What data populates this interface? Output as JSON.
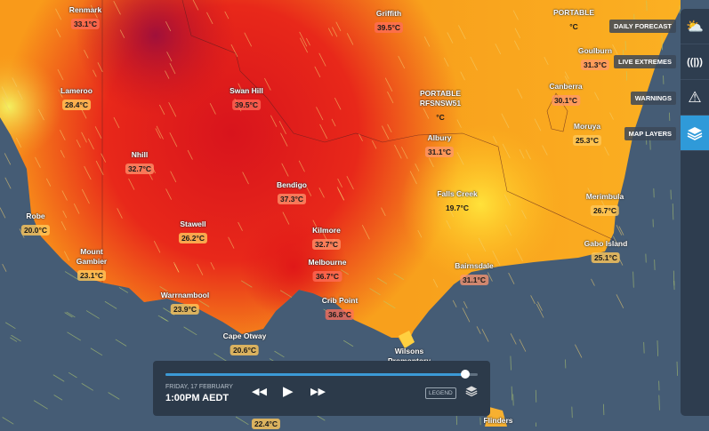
{
  "places": [
    {
      "name": "Renmark",
      "temp": "33.1°C"
    },
    {
      "name": "Griffith",
      "temp": "39.5°C"
    },
    {
      "name": "PORTABLE",
      "temp": "°C"
    },
    {
      "name": "Goulburn",
      "temp": "31.3°C"
    },
    {
      "name": "Lameroo",
      "temp": "28.4°C"
    },
    {
      "name": "Swan Hill",
      "temp": "39.5°C"
    },
    {
      "name": "PORTABLE RFSNSW51",
      "temp": "°C"
    },
    {
      "name": "Canberra",
      "temp": "30.1°C"
    },
    {
      "name": "Moruya",
      "temp": "25.3°C"
    },
    {
      "name": "Albury",
      "temp": "31.1°C"
    },
    {
      "name": "Nhill",
      "temp": "32.7°C"
    },
    {
      "name": "Bendigo",
      "temp": "37.3°C"
    },
    {
      "name": "Falls Creek",
      "temp": "19.7°C"
    },
    {
      "name": "Merimbula",
      "temp": "26.7°C"
    },
    {
      "name": "Robe",
      "temp": "20.0°C"
    },
    {
      "name": "Stawell",
      "temp": "26.2°C"
    },
    {
      "name": "Kilmore",
      "temp": "32.7°C"
    },
    {
      "name": "Gabo Island",
      "temp": "25.1°C"
    },
    {
      "name": "Mount Gambier",
      "temp": "23.1°C"
    },
    {
      "name": "Melbourne",
      "temp": "36.7°C"
    },
    {
      "name": "Bairnsdale",
      "temp": "31.1°C"
    },
    {
      "name": "Warrnambool",
      "temp": "23.9°C"
    },
    {
      "name": "Crib Point",
      "temp": "36.8°C"
    },
    {
      "name": "Cape Otway",
      "temp": "20.6°C"
    },
    {
      "name": "Wilsons Promontory",
      "temp": ""
    },
    {
      "name": "",
      "temp": "22.4°C"
    },
    {
      "name": "Flinders",
      "temp": ""
    }
  ],
  "sidebar": {
    "items": [
      {
        "label": "DAILY FORECAST",
        "icon": "partly-cloudy-icon"
      },
      {
        "label": "LIVE EXTREMES",
        "icon": "broadcast-icon"
      },
      {
        "label": "WARNINGS",
        "icon": "warning-icon"
      },
      {
        "label": "MAP LAYERS",
        "icon": "layers-icon",
        "active": true
      }
    ]
  },
  "player": {
    "date": "FRIDAY, 17 FEBRUARY",
    "time": "1:00PM AEDT",
    "progress": 0.96,
    "legend_label": "LEGEND"
  },
  "colors": {
    "ocean": "#455c75",
    "accent": "#2f9ad9",
    "hot": "#d4101a",
    "warm": "#f7941d",
    "mild": "#ffd23a"
  }
}
